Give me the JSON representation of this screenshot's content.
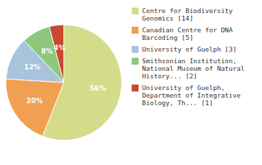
{
  "chart_data": {
    "type": "pie",
    "categories": [
      "Centre for Biodiversity\nGenomics [14]",
      "Canadian Centre for DNA\nBarcoding [5]",
      "University of Guelph [3]",
      "Smithsonian Institution,\nNational Museum of Natural\nHistory... [2]",
      "University of Guelph,\nDepartment of Integrative\nBiology, Th... [1]"
    ],
    "values": [
      56,
      20,
      12,
      8,
      4
    ],
    "value_labels": [
      "56%",
      "20%",
      "12%",
      "8%",
      "4%"
    ],
    "colors": [
      "#d4dc8a",
      "#f0a050",
      "#a8c4dc",
      "#8dc87c",
      "#c84830"
    ],
    "data_labels": true,
    "legend": "right"
  }
}
